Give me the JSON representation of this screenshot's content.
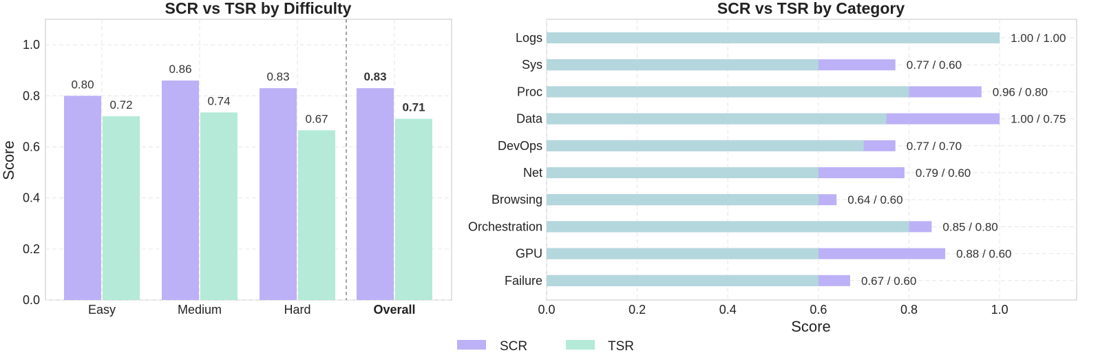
{
  "colors": {
    "scr": "#bcb1f6",
    "tsr": "#b4ead7",
    "overlap": "#b3d7dc",
    "grid": "#e6e6e6",
    "frame": "#cfcfcf"
  },
  "legend": {
    "items": [
      {
        "label": "SCR",
        "color": "#bcb1f6"
      },
      {
        "label": "TSR",
        "color": "#b4ead7"
      }
    ],
    "placement": "bottom-center"
  },
  "chart_data": [
    {
      "type": "bar",
      "title": "SCR vs TSR by Difficulty",
      "xlabel": "",
      "ylabel": "Score",
      "ylim": [
        0,
        1.1
      ],
      "yticks": [
        "0.0",
        "0.2",
        "0.4",
        "0.6",
        "0.8",
        "1.0"
      ],
      "categories": [
        "Easy",
        "Medium",
        "Hard",
        "Overall"
      ],
      "emphasized_category": "Overall",
      "series": [
        {
          "name": "SCR",
          "values": [
            0.8,
            0.86,
            0.83,
            0.83
          ],
          "labels": [
            "0.80",
            "0.86",
            "0.83",
            "0.83"
          ]
        },
        {
          "name": "TSR",
          "values": [
            0.72,
            0.735,
            0.665,
            0.71
          ],
          "labels": [
            "0.72",
            "0.74",
            "0.67",
            "0.71"
          ]
        }
      ],
      "grid": true
    },
    {
      "type": "bar",
      "orientation": "horizontal",
      "title": "SCR vs TSR by Category",
      "xlabel": "Score",
      "ylabel": "",
      "xlim": [
        0,
        1.17
      ],
      "xticks": [
        "0.0",
        "0.2",
        "0.4",
        "0.6",
        "0.8",
        "1.0"
      ],
      "categories": [
        "Logs",
        "Sys",
        "Proc",
        "Data",
        "DevOps",
        "Net",
        "Browsing",
        "Orchestration",
        "GPU",
        "Failure"
      ],
      "series": [
        {
          "name": "SCR",
          "values": [
            1.0,
            0.77,
            0.96,
            1.0,
            0.77,
            0.79,
            0.64,
            0.85,
            0.88,
            0.67
          ]
        },
        {
          "name": "TSR",
          "values": [
            1.0,
            0.6,
            0.8,
            0.75,
            0.7,
            0.6,
            0.6,
            0.8,
            0.6,
            0.6
          ]
        }
      ],
      "labels": [
        "1.00 / 1.00",
        "0.77 / 0.60",
        "0.96 / 0.80",
        "1.00 / 0.75",
        "0.77 / 0.70",
        "0.79 / 0.60",
        "0.64 / 0.60",
        "0.85 / 0.80",
        "0.88 / 0.60",
        "0.67 / 0.60"
      ],
      "grid": true
    }
  ]
}
